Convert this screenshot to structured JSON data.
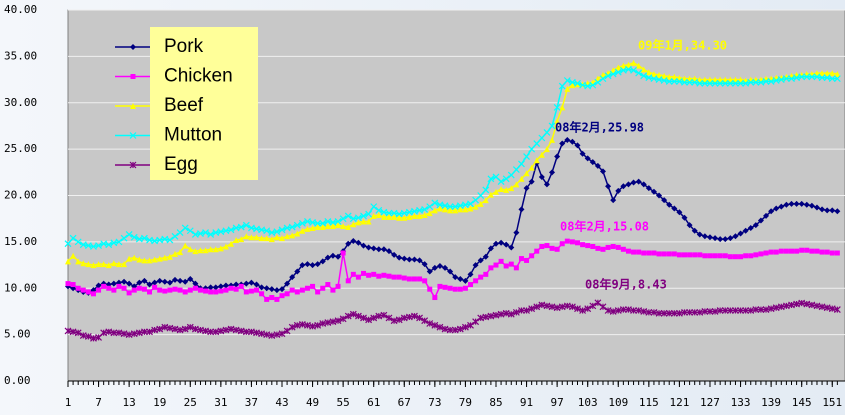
{
  "chart_data": {
    "type": "line",
    "annotations": [
      "09年1月,34.30",
      "08年2月,25.98",
      "08年2月,15.08",
      "08年9月,8.43"
    ],
    "x": [
      1,
      2,
      3,
      4,
      5,
      6,
      7,
      8,
      9,
      10,
      11,
      12,
      13,
      14,
      15,
      16,
      17,
      18,
      19,
      20,
      21,
      22,
      23,
      24,
      25,
      26,
      27,
      28,
      29,
      30,
      31,
      32,
      33,
      34,
      35,
      36,
      37,
      38,
      39,
      40,
      41,
      42,
      43,
      44,
      45,
      46,
      47,
      48,
      49,
      50,
      51,
      52,
      53,
      54,
      55,
      56,
      57,
      58,
      59,
      60,
      61,
      62,
      63,
      64,
      65,
      66,
      67,
      68,
      69,
      70,
      71,
      72,
      73,
      74,
      75,
      76,
      77,
      78,
      79,
      80,
      81,
      82,
      83,
      84,
      85,
      86,
      87,
      88,
      89,
      90,
      91,
      92,
      93,
      94,
      95,
      96,
      97,
      98,
      99,
      100,
      101,
      102,
      103,
      104,
      105,
      106,
      107,
      108,
      109,
      110,
      111,
      112,
      113,
      114,
      115,
      116,
      117,
      118,
      119,
      120,
      121,
      122,
      123,
      124,
      125,
      126,
      127,
      128,
      129,
      130,
      131,
      132,
      133,
      134,
      135,
      136,
      137,
      138,
      139,
      140,
      141,
      142,
      143,
      144,
      145,
      146,
      147,
      148,
      149,
      150,
      151,
      152
    ],
    "xlim": [
      1,
      153.5
    ],
    "xticks": [
      1,
      7,
      13,
      19,
      25,
      31,
      37,
      43,
      49,
      55,
      61,
      67,
      73,
      79,
      85,
      91,
      97,
      103,
      109,
      115,
      121,
      127,
      133,
      139,
      145,
      151
    ],
    "ylim": [
      0,
      40
    ],
    "yticks": [
      {
        "value": 0,
        "label": "0.00"
      },
      {
        "value": 5,
        "label": "5.00"
      },
      {
        "value": 10,
        "label": "10.00"
      },
      {
        "value": 15,
        "label": "15.00"
      },
      {
        "value": 20,
        "label": "20.00"
      },
      {
        "value": 25,
        "label": "25.00"
      },
      {
        "value": 30,
        "label": "30.00"
      },
      {
        "value": 35,
        "label": "35.00"
      },
      {
        "value": 40,
        "label": "40.00"
      }
    ],
    "grid": true,
    "legend": "top-left",
    "series": [
      {
        "name": "Pork",
        "color": "#000080",
        "marker": "diamond",
        "values": [
          10.2,
          10.0,
          9.8,
          9.6,
          9.5,
          9.8,
          10.3,
          10.5,
          10.4,
          10.5,
          10.6,
          10.7,
          10.5,
          10.2,
          10.6,
          10.8,
          10.4,
          10.6,
          10.8,
          10.7,
          10.6,
          10.9,
          10.8,
          10.7,
          11.0,
          10.5,
          10.0,
          10.0,
          10.1,
          10.1,
          10.2,
          10.3,
          10.3,
          10.4,
          10.4,
          10.5,
          10.6,
          10.4,
          10.1,
          10.0,
          9.9,
          9.8,
          9.9,
          10.5,
          11.2,
          11.8,
          12.5,
          12.6,
          12.5,
          12.6,
          12.9,
          13.3,
          13.5,
          13.4,
          14.0,
          14.8,
          15.1,
          14.9,
          14.6,
          14.4,
          14.3,
          14.2,
          14.2,
          14.0,
          13.6,
          13.3,
          13.2,
          13.1,
          13.1,
          13.0,
          12.6,
          11.8,
          12.2,
          12.4,
          12.2,
          11.8,
          11.2,
          11.0,
          10.8,
          11.5,
          12.5,
          13.0,
          13.4,
          14.3,
          14.8,
          14.9,
          14.7,
          14.4,
          16.0,
          18.5,
          20.8,
          21.5,
          23.5,
          22.0,
          21.2,
          22.5,
          24.2,
          25.6,
          25.98,
          25.8,
          25.4,
          24.5,
          24.0,
          23.6,
          23.2,
          22.6,
          21.0,
          19.5,
          20.5,
          21.0,
          21.2,
          21.4,
          21.5,
          21.2,
          20.8,
          20.4,
          20.0,
          19.5,
          19.0,
          18.6,
          18.2,
          17.6,
          16.8,
          16.2,
          15.8,
          15.6,
          15.5,
          15.4,
          15.3,
          15.3,
          15.4,
          15.6,
          15.9,
          16.2,
          16.5,
          16.8,
          17.3,
          17.8,
          18.3,
          18.6,
          18.8,
          19.0,
          19.1,
          19.1,
          19.1,
          19.0,
          18.9,
          18.7,
          18.5,
          18.4,
          18.4,
          18.3
        ]
      },
      {
        "name": "Chicken",
        "color": "#ff00ff",
        "marker": "square",
        "values": [
          10.5,
          10.4,
          10.0,
          9.8,
          9.6,
          9.4,
          9.8,
          10.2,
          10.0,
          9.8,
          10.2,
          10.0,
          9.5,
          9.8,
          10.0,
          9.9,
          9.6,
          10.1,
          9.8,
          9.7,
          9.8,
          9.9,
          9.8,
          9.6,
          9.8,
          10.0,
          9.8,
          9.7,
          9.6,
          9.6,
          9.7,
          9.8,
          10.0,
          9.9,
          10.2,
          9.6,
          9.7,
          9.8,
          9.4,
          8.8,
          9.0,
          8.8,
          9.2,
          9.4,
          9.8,
          9.6,
          9.8,
          10.0,
          10.2,
          9.6,
          10.0,
          10.4,
          9.8,
          10.2,
          13.8,
          10.8,
          11.5,
          11.2,
          11.6,
          11.4,
          11.5,
          11.3,
          11.4,
          11.3,
          11.2,
          11.2,
          11.1,
          11.0,
          11.0,
          11.0,
          10.8,
          9.9,
          9.0,
          10.2,
          10.1,
          10.0,
          9.9,
          9.9,
          10.0,
          10.4,
          10.8,
          11.2,
          11.5,
          12.2,
          12.5,
          12.9,
          12.4,
          12.6,
          12.2,
          13.2,
          13.0,
          13.5,
          14.0,
          14.5,
          14.6,
          14.3,
          14.2,
          14.8,
          15.08,
          15.0,
          14.9,
          14.7,
          14.6,
          14.5,
          14.3,
          14.2,
          14.4,
          14.5,
          14.4,
          14.2,
          14.0,
          13.9,
          13.9,
          13.8,
          13.8,
          13.8,
          13.7,
          13.7,
          13.7,
          13.7,
          13.6,
          13.6,
          13.6,
          13.6,
          13.6,
          13.5,
          13.5,
          13.5,
          13.5,
          13.5,
          13.4,
          13.4,
          13.4,
          13.5,
          13.5,
          13.6,
          13.7,
          13.8,
          13.9,
          13.9,
          14.0,
          14.0,
          14.0,
          14.0,
          14.1,
          14.1,
          14.0,
          14.0,
          13.9,
          13.9,
          13.8,
          13.8
        ]
      },
      {
        "name": "Beef",
        "color": "#ffff00",
        "marker": "triangle",
        "values": [
          12.9,
          13.5,
          12.9,
          12.7,
          12.6,
          12.5,
          12.6,
          12.6,
          12.5,
          12.7,
          12.6,
          12.6,
          13.2,
          13.3,
          13.1,
          13.0,
          13.0,
          13.1,
          13.2,
          13.3,
          13.4,
          13.7,
          13.9,
          14.6,
          14.2,
          14.0,
          14.1,
          14.1,
          14.2,
          14.2,
          14.3,
          14.5,
          14.8,
          15.2,
          15.3,
          15.6,
          15.5,
          15.5,
          15.4,
          15.4,
          15.3,
          15.5,
          15.4,
          15.6,
          15.7,
          15.9,
          16.2,
          16.4,
          16.5,
          16.6,
          16.6,
          16.7,
          16.7,
          16.8,
          16.7,
          16.6,
          16.9,
          17.1,
          17.2,
          17.2,
          17.8,
          17.9,
          17.7,
          17.7,
          17.7,
          17.6,
          17.6,
          17.7,
          17.8,
          17.8,
          17.9,
          18.1,
          18.4,
          18.6,
          18.5,
          18.4,
          18.4,
          18.5,
          18.5,
          18.6,
          18.8,
          19.1,
          19.5,
          20.1,
          20.4,
          20.7,
          20.6,
          20.8,
          21.2,
          21.8,
          22.4,
          23.0,
          23.8,
          24.4,
          25.0,
          26.0,
          28.0,
          29.5,
          31.5,
          31.9,
          32.0,
          32.0,
          32.1,
          32.2,
          32.6,
          33.0,
          33.2,
          33.5,
          33.8,
          34.0,
          34.1,
          34.3,
          34.0,
          33.6,
          33.3,
          33.1,
          33.0,
          32.9,
          32.8,
          32.8,
          32.7,
          32.6,
          32.6,
          32.6,
          32.5,
          32.5,
          32.5,
          32.5,
          32.5,
          32.5,
          32.5,
          32.5,
          32.5,
          32.4,
          32.5,
          32.5,
          32.5,
          32.6,
          32.6,
          32.7,
          32.7,
          32.8,
          32.9,
          33.0,
          33.0,
          33.1,
          33.1,
          33.2,
          33.2,
          33.2,
          33.2,
          33.1
        ]
      },
      {
        "name": "Mutton",
        "color": "#00ffff",
        "marker": "cross",
        "values": [
          14.8,
          15.4,
          15.0,
          14.7,
          14.6,
          14.5,
          14.6,
          14.8,
          14.7,
          14.9,
          15.0,
          15.4,
          15.8,
          15.5,
          15.3,
          15.4,
          15.2,
          15.1,
          15.2,
          15.3,
          15.2,
          15.6,
          16.0,
          16.5,
          16.2,
          15.8,
          15.9,
          16.0,
          15.8,
          16.0,
          16.1,
          16.2,
          16.3,
          16.5,
          16.6,
          16.8,
          16.5,
          16.4,
          16.3,
          16.2,
          16.0,
          16.1,
          16.3,
          16.5,
          16.6,
          16.8,
          17.0,
          17.2,
          17.1,
          17.0,
          17.0,
          17.2,
          17.1,
          17.2,
          17.5,
          17.8,
          17.5,
          17.6,
          17.8,
          18.0,
          18.8,
          18.4,
          18.2,
          18.1,
          18.1,
          18.0,
          18.1,
          18.2,
          18.3,
          18.4,
          18.5,
          18.8,
          19.2,
          19.0,
          18.9,
          18.8,
          18.8,
          18.9,
          19.0,
          19.1,
          19.5,
          20.0,
          20.6,
          21.8,
          22.0,
          21.5,
          21.8,
          22.2,
          22.8,
          23.4,
          24.2,
          25.0,
          25.6,
          26.2,
          26.8,
          27.5,
          29.5,
          31.8,
          32.4,
          32.2,
          32.1,
          31.9,
          31.8,
          31.9,
          32.2,
          32.6,
          32.9,
          33.1,
          33.3,
          33.5,
          33.6,
          33.5,
          33.2,
          32.9,
          32.7,
          32.6,
          32.5,
          32.4,
          32.3,
          32.3,
          32.3,
          32.2,
          32.2,
          32.2,
          32.1,
          32.1,
          32.1,
          32.1,
          32.1,
          32.1,
          32.1,
          32.1,
          32.1,
          32.1,
          32.2,
          32.2,
          32.2,
          32.3,
          32.3,
          32.4,
          32.5,
          32.6,
          32.6,
          32.7,
          32.8,
          32.8,
          32.8,
          32.8,
          32.7,
          32.7,
          32.6,
          32.6
        ]
      },
      {
        "name": "Egg",
        "color": "#800080",
        "marker": "star",
        "values": [
          5.4,
          5.3,
          5.2,
          4.9,
          4.8,
          4.6,
          4.7,
          5.2,
          5.3,
          5.2,
          5.2,
          5.1,
          5.0,
          5.1,
          5.2,
          5.3,
          5.3,
          5.5,
          5.6,
          5.8,
          5.7,
          5.6,
          5.5,
          5.6,
          5.8,
          5.6,
          5.5,
          5.4,
          5.3,
          5.3,
          5.4,
          5.5,
          5.6,
          5.5,
          5.4,
          5.3,
          5.3,
          5.2,
          5.1,
          5.0,
          4.9,
          5.0,
          5.1,
          5.4,
          5.8,
          6.0,
          6.1,
          6.0,
          5.9,
          6.0,
          6.2,
          6.3,
          6.4,
          6.5,
          6.7,
          7.0,
          7.2,
          7.0,
          6.8,
          6.6,
          6.8,
          7.0,
          7.1,
          6.8,
          6.5,
          6.6,
          6.8,
          6.9,
          7.0,
          6.8,
          6.5,
          6.2,
          6.0,
          5.8,
          5.6,
          5.5,
          5.5,
          5.6,
          5.8,
          6.0,
          6.4,
          6.8,
          6.9,
          7.0,
          7.1,
          7.2,
          7.3,
          7.2,
          7.4,
          7.6,
          7.6,
          7.8,
          8.0,
          8.2,
          8.1,
          8.0,
          7.9,
          8.0,
          8.1,
          8.0,
          7.8,
          7.6,
          7.8,
          8.1,
          8.43,
          8.0,
          7.6,
          7.5,
          7.6,
          7.7,
          7.7,
          7.6,
          7.6,
          7.5,
          7.4,
          7.4,
          7.3,
          7.3,
          7.3,
          7.3,
          7.3,
          7.4,
          7.4,
          7.4,
          7.4,
          7.5,
          7.5,
          7.5,
          7.6,
          7.6,
          7.6,
          7.6,
          7.6,
          7.6,
          7.6,
          7.7,
          7.7,
          7.7,
          7.8,
          7.9,
          8.0,
          8.1,
          8.2,
          8.3,
          8.4,
          8.3,
          8.2,
          8.1,
          8.0,
          7.9,
          7.8,
          7.7
        ]
      }
    ]
  }
}
